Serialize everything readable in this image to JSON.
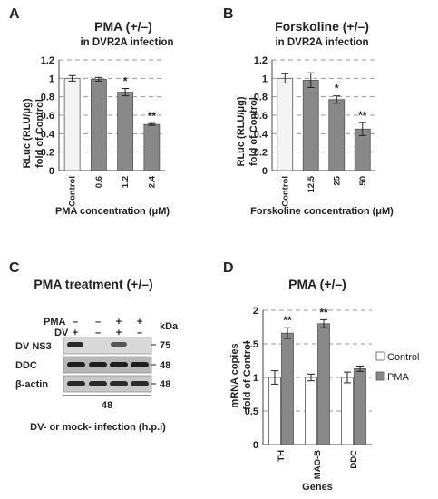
{
  "chart_data": [
    {
      "panel": "A",
      "type": "bar",
      "title": "PMA (+/–)",
      "subtitle": "in DVR2A infection",
      "xlabel": "PMA concentration (μM)",
      "ylabel": "RLuc (RLU/μg)",
      "ylabel2": "fold of Control",
      "ylim": [
        0,
        1.2
      ],
      "yticks": [
        "0",
        "0.2",
        "0.4",
        "0.6",
        "0.8",
        "1",
        "1.2"
      ],
      "grid": true,
      "categories": [
        "Control",
        "0.6",
        "1.2",
        "2.4"
      ],
      "values": [
        1.0,
        0.99,
        0.85,
        0.5
      ],
      "errors": [
        0.03,
        0.02,
        0.04,
        0.01
      ],
      "significance": [
        "",
        "",
        "*",
        "**"
      ],
      "colors": [
        "#f3f3f3",
        "#888888",
        "#888888",
        "#888888"
      ]
    },
    {
      "panel": "B",
      "type": "bar",
      "title": "Forskoline (+/–)",
      "subtitle": "in DVR2A infection",
      "xlabel": "Forskoline concentration (μM)",
      "ylabel": "RLuc (RLU/μg)",
      "ylabel2": "fold of Control",
      "ylim": [
        0,
        1.2
      ],
      "yticks": [
        "0",
        "0.2",
        "0.4",
        "0.6",
        "0.8",
        "1",
        "1.2"
      ],
      "grid": true,
      "categories": [
        "Control",
        "12.5",
        "25",
        "50"
      ],
      "values": [
        1.0,
        0.98,
        0.77,
        0.45
      ],
      "errors": [
        0.05,
        0.08,
        0.04,
        0.07
      ],
      "significance": [
        "",
        "",
        "*",
        "**"
      ],
      "colors": [
        "#f3f3f3",
        "#888888",
        "#888888",
        "#888888"
      ]
    },
    {
      "panel": "D",
      "type": "bar",
      "title": "PMA (+/–)",
      "xlabel": "Genes",
      "ylabel": "mRNA copies",
      "ylabel2": "fold of Control",
      "ylim": [
        0,
        2
      ],
      "yticks": [
        "0",
        "0.5",
        "1",
        "1.5",
        "2"
      ],
      "grid": true,
      "legend_position": "right",
      "categories": [
        "TH",
        "MAO-B",
        "DDC"
      ],
      "series": [
        {
          "name": "Control",
          "values": [
            1.0,
            1.0,
            1.0
          ],
          "errors": [
            0.1,
            0.05,
            0.08
          ],
          "significance": [
            "",
            "",
            ""
          ],
          "color": "#ffffff"
        },
        {
          "name": "PMA",
          "values": [
            1.66,
            1.8,
            1.13
          ],
          "errors": [
            0.08,
            0.06,
            0.04
          ],
          "significance": [
            "**",
            "**",
            ""
          ],
          "color": "#888888"
        }
      ]
    }
  ],
  "panels": {
    "a": {
      "letter": "A"
    },
    "b": {
      "letter": "B"
    },
    "c": {
      "letter": "C",
      "title": "PMA treatment (+/–)",
      "row_pma_label": "PMA",
      "row_dv_label": "DV",
      "pma_signs": [
        "–",
        "–",
        "+",
        "+"
      ],
      "dv_signs": [
        "+",
        "–",
        "+",
        "–"
      ],
      "kda_label": "kDa",
      "bands": [
        "DV NS3",
        "DDC",
        "β-actin"
      ],
      "markers": [
        "75",
        "48",
        "48"
      ],
      "timepoint": "48",
      "caption": "DV- or mock- infection (h.p.i)"
    },
    "d": {
      "letter": "D"
    }
  }
}
